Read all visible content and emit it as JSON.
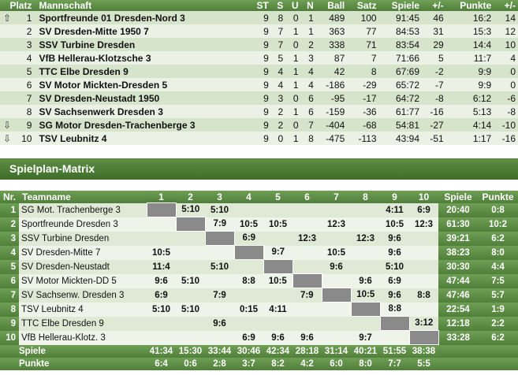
{
  "standings": {
    "headers": [
      "Platz",
      "Mannschaft",
      "ST",
      "S",
      "U",
      "N",
      "Ball",
      "Satz",
      "Spiele",
      "+/-",
      "Punkte",
      "+/-"
    ],
    "rows": [
      {
        "icon": "up",
        "platz": "1",
        "team": "Sportfreunde 01 Dresden-Nord 3",
        "st": "9",
        "s": "8",
        "u": "0",
        "n": "1",
        "ball": "489",
        "satz": "100",
        "spiele": "91:45",
        "pm1": "46",
        "punkte": "16:2",
        "pm2": "14"
      },
      {
        "icon": "",
        "platz": "2",
        "team": "SV Dresden-Mitte 1950 7",
        "st": "9",
        "s": "7",
        "u": "1",
        "n": "1",
        "ball": "363",
        "satz": "77",
        "spiele": "84:53",
        "pm1": "31",
        "punkte": "15:3",
        "pm2": "12"
      },
      {
        "icon": "",
        "platz": "3",
        "team": "SSV Turbine Dresden",
        "st": "9",
        "s": "7",
        "u": "0",
        "n": "2",
        "ball": "338",
        "satz": "71",
        "spiele": "83:54",
        "pm1": "29",
        "punkte": "14:4",
        "pm2": "10"
      },
      {
        "icon": "",
        "platz": "4",
        "team": "VfB Hellerau-Klotzsche 3",
        "st": "9",
        "s": "5",
        "u": "1",
        "n": "3",
        "ball": "87",
        "satz": "7",
        "spiele": "71:66",
        "pm1": "5",
        "punkte": "11:7",
        "pm2": "4"
      },
      {
        "icon": "",
        "platz": "5",
        "team": "TTC Elbe Dresden 9",
        "st": "9",
        "s": "4",
        "u": "1",
        "n": "4",
        "ball": "42",
        "satz": "8",
        "spiele": "67:69",
        "pm1": "-2",
        "punkte": "9:9",
        "pm2": "0"
      },
      {
        "icon": "",
        "platz": "6",
        "team": "SV Motor Mickten-Dresden 5",
        "st": "9",
        "s": "4",
        "u": "1",
        "n": "4",
        "ball": "-186",
        "satz": "-29",
        "spiele": "65:72",
        "pm1": "-7",
        "punkte": "9:9",
        "pm2": "0"
      },
      {
        "icon": "",
        "platz": "7",
        "team": "SV Dresden-Neustadt 1950",
        "st": "9",
        "s": "3",
        "u": "0",
        "n": "6",
        "ball": "-95",
        "satz": "-17",
        "spiele": "64:72",
        "pm1": "-8",
        "punkte": "6:12",
        "pm2": "-6"
      },
      {
        "icon": "",
        "platz": "8",
        "team": "SV Sachsenwerk Dresden 3",
        "st": "9",
        "s": "2",
        "u": "1",
        "n": "6",
        "ball": "-159",
        "satz": "-36",
        "spiele": "61:77",
        "pm1": "-16",
        "punkte": "5:13",
        "pm2": "-8"
      },
      {
        "icon": "down",
        "platz": "9",
        "team": "SG Motor Dresden-Trachenberge 3",
        "st": "9",
        "s": "2",
        "u": "0",
        "n": "7",
        "ball": "-404",
        "satz": "-68",
        "spiele": "54:81",
        "pm1": "-27",
        "punkte": "4:14",
        "pm2": "-10"
      },
      {
        "icon": "down",
        "platz": "10",
        "team": "TSV Leubnitz 4",
        "st": "9",
        "s": "0",
        "u": "1",
        "n": "8",
        "ball": "-475",
        "satz": "-113",
        "spiele": "43:94",
        "pm1": "-51",
        "punkte": "1:17",
        "pm2": "-16"
      }
    ]
  },
  "section_title": "Spielplan-Matrix",
  "matrix": {
    "headers": {
      "nr": "Nr.",
      "team": "Teamname",
      "cols": [
        "1",
        "2",
        "3",
        "4",
        "5",
        "6",
        "7",
        "8",
        "9",
        "10"
      ],
      "spiele": "Spiele",
      "punkte": "Punkte"
    },
    "rows": [
      {
        "nr": "1",
        "team": "SG Mot. Trachenberge 3",
        "cells": [
          "",
          "5:10",
          "5:10",
          "",
          "",
          "",
          "",
          "",
          "4:11",
          "6:9"
        ],
        "spiele": "20:40",
        "punkte": "0:8"
      },
      {
        "nr": "2",
        "team": "Sportfreunde Dresden 3",
        "cells": [
          "",
          "",
          "7:9",
          "10:5",
          "10:5",
          "",
          "12:3",
          "",
          "10:5",
          "12:3"
        ],
        "spiele": "61:30",
        "punkte": "10:2"
      },
      {
        "nr": "3",
        "team": "SSV Turbine Dresden",
        "cells": [
          "",
          "",
          "",
          "6:9",
          "",
          "12:3",
          "",
          "12:3",
          "9:6",
          ""
        ],
        "spiele": "39:21",
        "punkte": "6:2"
      },
      {
        "nr": "4",
        "team": "SV Dresden-Mitte 7",
        "cells": [
          "10:5",
          "",
          "",
          "",
          "9:7",
          "",
          "10:5",
          "",
          "9:6",
          ""
        ],
        "spiele": "38:23",
        "punkte": "8:0"
      },
      {
        "nr": "5",
        "team": "SV Dresden-Neustadt",
        "cells": [
          "11:4",
          "",
          "5:10",
          "",
          "",
          "",
          "9:6",
          "",
          "5:10",
          ""
        ],
        "spiele": "30:30",
        "punkte": "4:4"
      },
      {
        "nr": "6",
        "team": "SV Motor Mickten-DD 5",
        "cells": [
          "9:6",
          "5:10",
          "",
          "8:8",
          "10:5",
          "",
          "",
          "9:6",
          "6:9",
          ""
        ],
        "spiele": "47:44",
        "punkte": "7:5"
      },
      {
        "nr": "7",
        "team": "SV Sachsenw. Dresden 3",
        "cells": [
          "6:9",
          "",
          "7:9",
          "",
          "",
          "7:9",
          "",
          "10:5",
          "9:6",
          "8:8"
        ],
        "spiele": "47:46",
        "punkte": "5:7"
      },
      {
        "nr": "8",
        "team": "TSV Leubnitz 4",
        "cells": [
          "5:10",
          "5:10",
          "",
          "0:15",
          "4:11",
          "",
          "",
          "",
          "8:8",
          ""
        ],
        "spiele": "22:54",
        "punkte": "1:9"
      },
      {
        "nr": "9",
        "team": "TTC Elbe Dresden 9",
        "cells": [
          "",
          "",
          "9:6",
          "",
          "",
          "",
          "",
          "",
          "",
          "3:12"
        ],
        "spiele": "12:18",
        "punkte": "2:2"
      },
      {
        "nr": "10",
        "team": "VfB Hellerau-Klotz. 3",
        "cells": [
          "",
          "",
          "",
          "6:9",
          "9:6",
          "9:6",
          "",
          "9:7",
          "",
          ""
        ],
        "spiele": "33:28",
        "punkte": "6:2"
      }
    ],
    "footer": {
      "spiele_label": "Spiele",
      "spiele": [
        "41:34",
        "15:30",
        "33:44",
        "30:46",
        "42:34",
        "28:18",
        "31:14",
        "40:21",
        "51:55",
        "38:38"
      ],
      "punkte_label": "Punkte",
      "punkte": [
        "6:4",
        "0:6",
        "2:8",
        "3:7",
        "8:2",
        "4:2",
        "6:0",
        "8:0",
        "7:7",
        "5:5"
      ]
    }
  }
}
